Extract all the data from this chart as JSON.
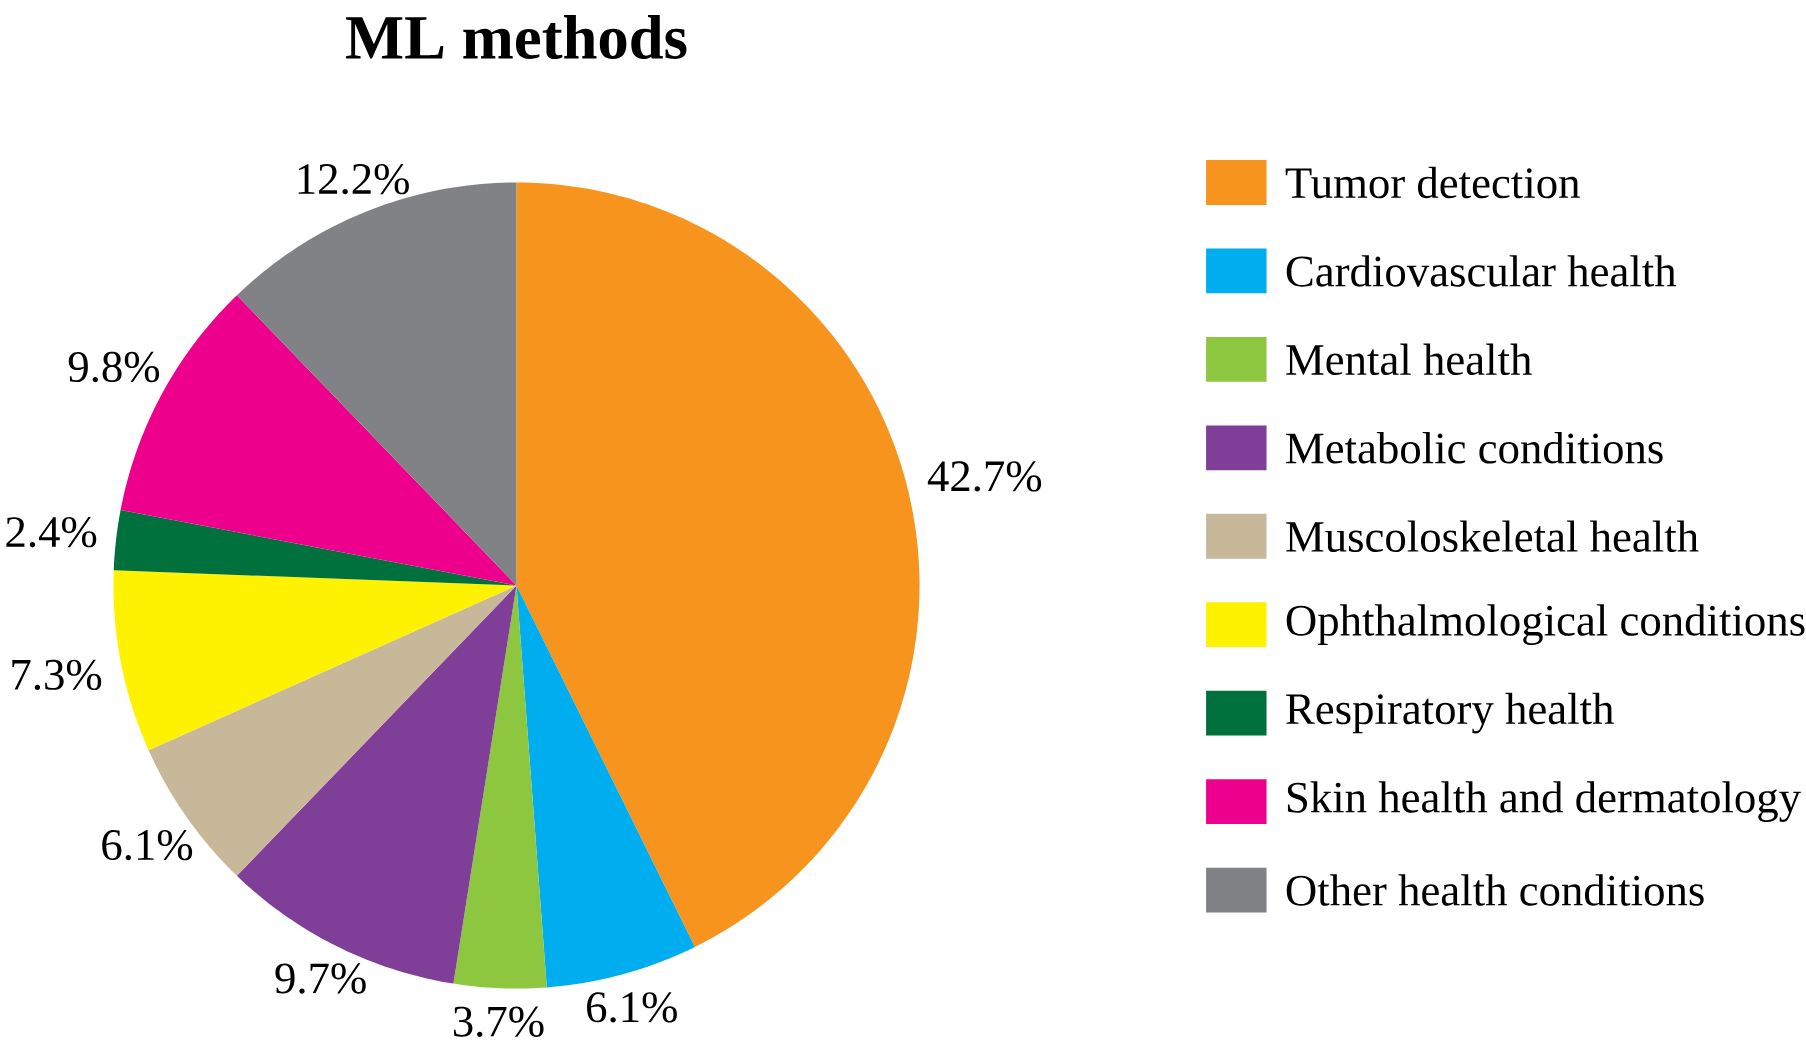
{
  "chart_data": {
    "type": "pie",
    "title": "ML methods",
    "categories": [
      "Tumor detection",
      "Cardiovascular health",
      "Mental health",
      "Metabolic conditions",
      "Muscoloskeletal health",
      "Ophthalmological conditions",
      "Respiratory health",
      "Skin health and dermatology",
      "Other health conditions"
    ],
    "values": [
      42.7,
      6.1,
      3.7,
      9.7,
      6.1,
      7.3,
      2.4,
      9.8,
      12.2
    ],
    "value_labels": [
      "42.7%",
      "6.1%",
      "3.7%",
      "9.7%",
      "6.1%",
      "7.3%",
      "2.4%",
      "9.8%",
      "12.2%"
    ],
    "colors": [
      "#f7941d",
      "#00aeef",
      "#8dc63f",
      "#7f3f98",
      "#c8b89a",
      "#fff200",
      "#00703c",
      "#ec008c",
      "#808285"
    ],
    "legend": "right"
  }
}
